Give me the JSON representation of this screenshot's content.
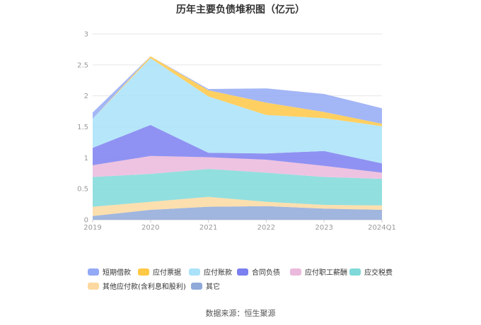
{
  "chart_data": {
    "type": "area",
    "stacked": true,
    "title": "历年主要负债堆积图（亿元）",
    "x": [
      "2019",
      "2020",
      "2021",
      "2022",
      "2023",
      "2024Q1"
    ],
    "y_ticks": [
      "0",
      "0.5",
      "1",
      "1.5",
      "2",
      "2.5",
      "3"
    ],
    "ylim": [
      0,
      3
    ],
    "grid": true,
    "legend_position": "bottom",
    "series": [
      {
        "name": "其它",
        "color": "#8fa9d9",
        "values": [
          0.06,
          0.16,
          0.21,
          0.22,
          0.18,
          0.16
        ]
      },
      {
        "name": "其他应付款(含利息和股利)",
        "color": "#fcd9a0",
        "values": [
          0.15,
          0.13,
          0.16,
          0.07,
          0.06,
          0.07
        ]
      },
      {
        "name": "应交税费",
        "color": "#7fd9d9",
        "values": [
          0.48,
          0.45,
          0.45,
          0.47,
          0.45,
          0.43
        ]
      },
      {
        "name": "应付职工薪酬",
        "color": "#ebb9dc",
        "values": [
          0.19,
          0.29,
          0.19,
          0.21,
          0.18,
          0.1
        ]
      },
      {
        "name": "合同负债",
        "color": "#7b7ff0",
        "values": [
          0.28,
          0.5,
          0.07,
          0.1,
          0.24,
          0.15
        ]
      },
      {
        "name": "应付账款",
        "color": "#a9e2f9",
        "values": [
          0.47,
          1.08,
          0.91,
          0.62,
          0.53,
          0.6
        ]
      },
      {
        "name": "应付票据",
        "color": "#ffc845",
        "values": [
          0.0,
          0.03,
          0.1,
          0.2,
          0.1,
          0.04
        ]
      },
      {
        "name": "短期借款",
        "color": "#93a9f5",
        "values": [
          0.1,
          0.0,
          0.02,
          0.23,
          0.29,
          0.25
        ]
      }
    ],
    "legend_order": [
      "短期借款",
      "应付票据",
      "应付账款",
      "合同负债",
      "应付职工薪酬",
      "应交税费",
      "其他应付款(含利息和股利)",
      "其它"
    ]
  },
  "source": "数据来源：恒生聚源"
}
